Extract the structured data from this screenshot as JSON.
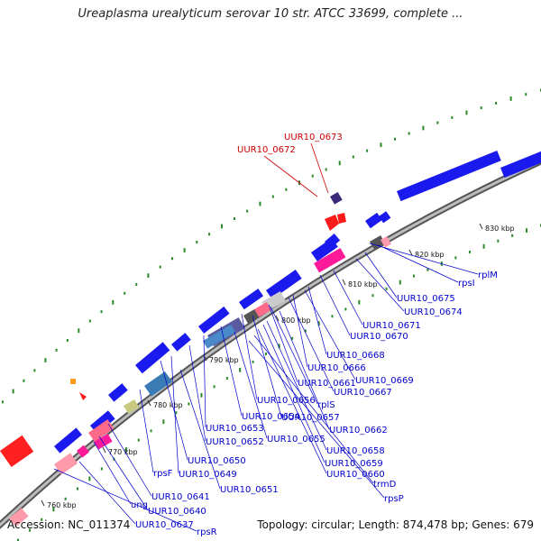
{
  "title": "Ureaplasma urealyticum serovar 10 str. ATCC 33699, complete ...",
  "footer": {
    "accession": "Accession: NC_011374",
    "summary": "Topology: circular; Length: 874,478 bp; Genes: 679"
  },
  "colors": {
    "backbone": "#8a8a8a",
    "forward_gene": "#1a1aee",
    "reverse_gene": "#e01060",
    "rrna": "#ff1a1a",
    "label_blue": "#0000cc",
    "label_red": "#cc0000",
    "gc_dots": "#2a8a2a"
  },
  "ticks": [
    {
      "label": "760 kbp"
    },
    {
      "label": "770 kbp"
    },
    {
      "label": "780 kbp"
    },
    {
      "label": "790 kbp"
    },
    {
      "label": "800 kbp"
    },
    {
      "label": "810 kbp"
    },
    {
      "label": "820 kbp"
    },
    {
      "label": "830 kbp"
    }
  ],
  "labels": {
    "red": [
      {
        "text": "UUR10_0673"
      },
      {
        "text": "UUR10_0672"
      }
    ],
    "blue": [
      {
        "text": "rplM"
      },
      {
        "text": "rpsI"
      },
      {
        "text": "UUR10_0675"
      },
      {
        "text": "UUR10_0674"
      },
      {
        "text": "UUR10_0671"
      },
      {
        "text": "UUR10_0670"
      },
      {
        "text": "UUR10_0668"
      },
      {
        "text": "UUR10_0666"
      },
      {
        "text": "UUR10_0669"
      },
      {
        "text": "UUR10_0661"
      },
      {
        "text": "UUR10_0667"
      },
      {
        "text": "UUR10_0656"
      },
      {
        "text": "rplS"
      },
      {
        "text": "UUR10_0654"
      },
      {
        "text": "UUR10_0657"
      },
      {
        "text": "UUR10_0653"
      },
      {
        "text": "UUR10_0662"
      },
      {
        "text": "UUR10_0652"
      },
      {
        "text": "UUR10_0655"
      },
      {
        "text": "UUR10_0658"
      },
      {
        "text": "UUR10_0650"
      },
      {
        "text": "UUR10_0659"
      },
      {
        "text": "rpsF"
      },
      {
        "text": "UUR10_0649"
      },
      {
        "text": "UUR10_0660"
      },
      {
        "text": "UUR10_0651"
      },
      {
        "text": "trmD"
      },
      {
        "text": "UUR10_0641"
      },
      {
        "text": "rpsP"
      },
      {
        "text": "ung"
      },
      {
        "text": "UUR10_0640"
      },
      {
        "text": "UUR10_0637"
      },
      {
        "text": "rpsR"
      }
    ]
  }
}
